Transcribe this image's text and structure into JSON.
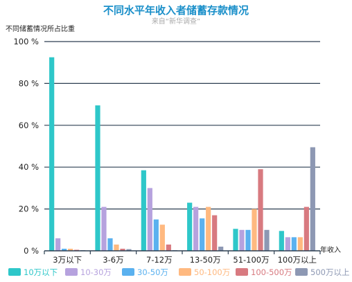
{
  "chart_data": {
    "type": "bar",
    "title": "不同水平年收入者储蓄存款情况",
    "subtitle": "来自“新华调查”",
    "ylabel": "不同储蓄情况所占比重",
    "xlabel": "年收入",
    "ylim": [
      0,
      100
    ],
    "y_ticks": [
      {
        "value": 0,
        "label": "0 %"
      },
      {
        "value": 20,
        "label": "20 %"
      },
      {
        "value": 40,
        "label": "40 %"
      },
      {
        "value": 60,
        "label": "60 %"
      },
      {
        "value": 80,
        "label": "80 %"
      },
      {
        "value": 100,
        "label": "100 %"
      }
    ],
    "grid": true,
    "legend_position": "bottom",
    "categories": [
      "3万以下",
      "3-6万",
      "7-12万",
      "13-50万",
      "51-100万",
      "100万以上"
    ],
    "series": [
      {
        "name": "10万以下",
        "color": "#2ec7c9",
        "values": [
          92.5,
          69.5,
          38.5,
          23,
          10.5,
          9.5
        ]
      },
      {
        "name": "10-30万",
        "color": "#b6a2de",
        "values": [
          6,
          21,
          30,
          21,
          10,
          6.5
        ]
      },
      {
        "name": "30-50万",
        "color": "#5ab1ef",
        "values": [
          1,
          6,
          15,
          15.5,
          10,
          6.5
        ]
      },
      {
        "name": "50-100万",
        "color": "#ffb980",
        "values": [
          1,
          3,
          12.5,
          21,
          20,
          6.5
        ]
      },
      {
        "name": "100-500万",
        "color": "#d87a80",
        "values": [
          0.5,
          1,
          3,
          17,
          39,
          21
        ]
      },
      {
        "name": "500万以上",
        "color": "#8d98b3",
        "values": [
          0.3,
          0.8,
          0.3,
          2,
          10,
          49.5
        ]
      }
    ]
  }
}
